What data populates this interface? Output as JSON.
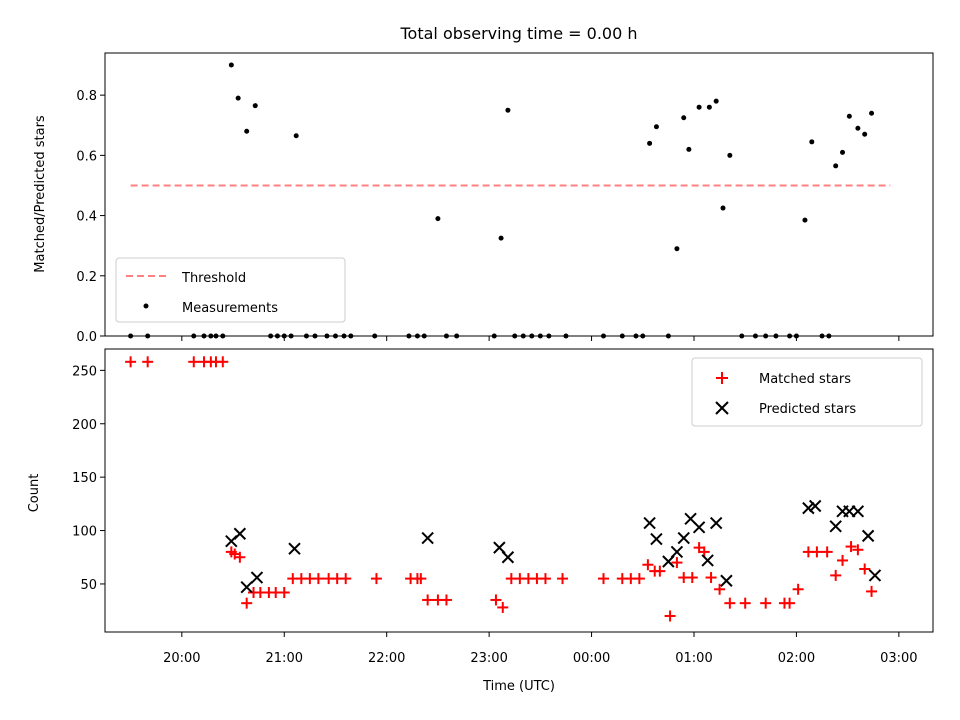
{
  "chart_data": [
    {
      "type": "scatter",
      "title": "Total observing time = 0.00 h",
      "xlabel": "",
      "ylabel": "Matched/Predicted stars",
      "ylim": [
        0,
        0.94
      ],
      "yticks": [
        "0.0",
        "0.2",
        "0.4",
        "0.6",
        "0.8"
      ],
      "legend_position": "lower-left",
      "threshold": {
        "name": "Threshold",
        "value": 0.5,
        "x_start": "19:30",
        "x_end": "02:55",
        "color": "#ff8080"
      },
      "series": [
        {
          "name": "Measurements",
          "color": "#000000",
          "points": [
            [
              "19:30",
              0
            ],
            [
              "19:40",
              0
            ],
            [
              "20:07",
              0
            ],
            [
              "20:13",
              0
            ],
            [
              "20:17",
              0
            ],
            [
              "20:20",
              0
            ],
            [
              "20:24",
              0
            ],
            [
              "20:29",
              0.9
            ],
            [
              "20:33",
              0.79
            ],
            [
              "20:38",
              0.68
            ],
            [
              "20:43",
              0.765
            ],
            [
              "20:52",
              0
            ],
            [
              "20:56",
              0
            ],
            [
              "21:00",
              0
            ],
            [
              "21:04",
              0
            ],
            [
              "21:07",
              0.665
            ],
            [
              "21:13",
              0
            ],
            [
              "21:18",
              0
            ],
            [
              "21:25",
              0
            ],
            [
              "21:30",
              0
            ],
            [
              "21:35",
              0
            ],
            [
              "21:39",
              0
            ],
            [
              "21:53",
              0
            ],
            [
              "22:13",
              0
            ],
            [
              "22:18",
              0
            ],
            [
              "22:22",
              0
            ],
            [
              "22:30",
              0.39
            ],
            [
              "22:35",
              0
            ],
            [
              "22:41",
              0
            ],
            [
              "23:03",
              0
            ],
            [
              "23:07",
              0.325
            ],
            [
              "23:11",
              0.75
            ],
            [
              "23:15",
              0
            ],
            [
              "23:20",
              0
            ],
            [
              "23:25",
              0
            ],
            [
              "23:30",
              0
            ],
            [
              "23:35",
              0
            ],
            [
              "23:45",
              0
            ],
            [
              "00:07",
              0
            ],
            [
              "00:18",
              0
            ],
            [
              "00:26",
              0
            ],
            [
              "00:30",
              0
            ],
            [
              "00:34",
              0.64
            ],
            [
              "00:38",
              0.695
            ],
            [
              "00:45",
              0
            ],
            [
              "00:50",
              0.29
            ],
            [
              "00:54",
              0.725
            ],
            [
              "00:57",
              0.62
            ],
            [
              "01:03",
              0.76
            ],
            [
              "01:09",
              0.76
            ],
            [
              "01:13",
              0.78
            ],
            [
              "01:17",
              0.425
            ],
            [
              "01:21",
              0.6
            ],
            [
              "01:28",
              0
            ],
            [
              "01:36",
              0
            ],
            [
              "01:42",
              0
            ],
            [
              "01:48",
              0
            ],
            [
              "01:56",
              0
            ],
            [
              "02:00",
              0
            ],
            [
              "02:05",
              0.385
            ],
            [
              "02:09",
              0.645
            ],
            [
              "02:15",
              0
            ],
            [
              "02:19",
              0
            ],
            [
              "02:23",
              0.565
            ],
            [
              "02:27",
              0.61
            ],
            [
              "02:31",
              0.73
            ],
            [
              "02:36",
              0.69
            ],
            [
              "02:40",
              0.67
            ],
            [
              "02:44",
              0.74
            ]
          ]
        }
      ]
    },
    {
      "type": "scatter",
      "title": "",
      "xlabel": "Time (UTC)",
      "ylabel": "Count",
      "ylim": [
        5,
        270
      ],
      "yticks": [
        "50",
        "100",
        "150",
        "200",
        "250"
      ],
      "xticks": [
        "20:00",
        "21:00",
        "22:00",
        "23:00",
        "00:00",
        "01:00",
        "02:00",
        "03:00"
      ],
      "legend_position": "upper-right",
      "series": [
        {
          "name": "Matched stars",
          "marker": "plus",
          "color": "#ff0000",
          "points": [
            [
              "19:30",
              258
            ],
            [
              "19:40",
              258
            ],
            [
              "20:07",
              258
            ],
            [
              "20:13",
              258
            ],
            [
              "20:17",
              258
            ],
            [
              "20:20",
              258
            ],
            [
              "20:24",
              258
            ],
            [
              "20:29",
              80
            ],
            [
              "20:31",
              78
            ],
            [
              "20:34",
              75
            ],
            [
              "20:38",
              32
            ],
            [
              "20:42",
              42
            ],
            [
              "20:46",
              42
            ],
            [
              "20:51",
              42
            ],
            [
              "20:55",
              42
            ],
            [
              "21:00",
              42
            ],
            [
              "21:05",
              55
            ],
            [
              "21:10",
              55
            ],
            [
              "21:15",
              55
            ],
            [
              "21:20",
              55
            ],
            [
              "21:26",
              55
            ],
            [
              "21:31",
              55
            ],
            [
              "21:36",
              55
            ],
            [
              "21:54",
              55
            ],
            [
              "22:14",
              55
            ],
            [
              "22:18",
              55
            ],
            [
              "22:20",
              55
            ],
            [
              "22:24",
              35
            ],
            [
              "22:30",
              35
            ],
            [
              "22:35",
              35
            ],
            [
              "23:04",
              35
            ],
            [
              "23:08",
              28
            ],
            [
              "23:13",
              55
            ],
            [
              "23:18",
              55
            ],
            [
              "23:23",
              55
            ],
            [
              "23:28",
              55
            ],
            [
              "23:33",
              55
            ],
            [
              "23:43",
              55
            ],
            [
              "00:07",
              55
            ],
            [
              "00:18",
              55
            ],
            [
              "00:23",
              55
            ],
            [
              "00:28",
              55
            ],
            [
              "00:33",
              68
            ],
            [
              "00:37",
              62
            ],
            [
              "00:40",
              62
            ],
            [
              "00:46",
              20
            ],
            [
              "00:50",
              70
            ],
            [
              "00:54",
              56
            ],
            [
              "00:59",
              56
            ],
            [
              "01:03",
              84
            ],
            [
              "01:06",
              80
            ],
            [
              "01:10",
              56
            ],
            [
              "01:15",
              45
            ],
            [
              "01:21",
              32
            ],
            [
              "01:30",
              32
            ],
            [
              "01:42",
              32
            ],
            [
              "01:53",
              32
            ],
            [
              "01:56",
              32
            ],
            [
              "02:01",
              45
            ],
            [
              "02:07",
              80
            ],
            [
              "02:12",
              80
            ],
            [
              "02:18",
              80
            ],
            [
              "02:23",
              58
            ],
            [
              "02:27",
              72
            ],
            [
              "02:32",
              85
            ],
            [
              "02:36",
              82
            ],
            [
              "02:40",
              64
            ],
            [
              "02:44",
              43
            ]
          ]
        },
        {
          "name": "Predicted stars",
          "marker": "x",
          "color": "#000000",
          "points": [
            [
              "20:29",
              90
            ],
            [
              "20:34",
              97
            ],
            [
              "20:38",
              47
            ],
            [
              "20:44",
              56
            ],
            [
              "21:06",
              83
            ],
            [
              "22:24",
              93
            ],
            [
              "23:06",
              84
            ],
            [
              "23:11",
              75
            ],
            [
              "00:34",
              107
            ],
            [
              "00:38",
              92
            ],
            [
              "00:45",
              71
            ],
            [
              "00:50",
              80
            ],
            [
              "00:54",
              93
            ],
            [
              "00:58",
              111
            ],
            [
              "01:03",
              103
            ],
            [
              "01:08",
              72
            ],
            [
              "01:13",
              107
            ],
            [
              "01:19",
              53
            ],
            [
              "02:07",
              121
            ],
            [
              "02:11",
              123
            ],
            [
              "02:23",
              104
            ],
            [
              "02:27",
              118
            ],
            [
              "02:31",
              118
            ],
            [
              "02:36",
              118
            ],
            [
              "02:42",
              95
            ],
            [
              "02:46",
              58
            ]
          ]
        }
      ]
    }
  ]
}
